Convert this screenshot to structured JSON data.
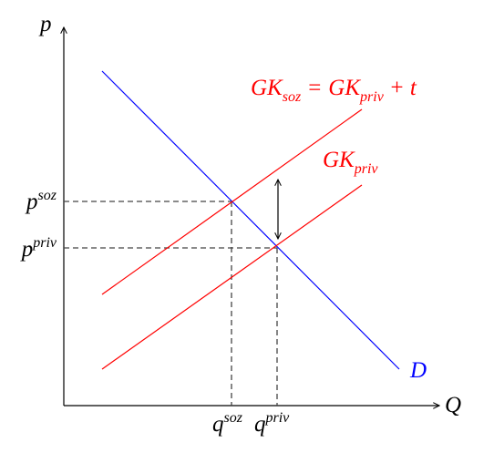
{
  "axes": {
    "y_label": "p",
    "x_label": "Q"
  },
  "curves": {
    "demand": "D",
    "private_cost": {
      "base": "GK",
      "sub": "priv"
    },
    "social_cost": {
      "base": "GK",
      "sub": "soz",
      "equals": "=",
      "rhs_base": "GK",
      "rhs_sub": "priv",
      "plus": "+ t"
    }
  },
  "prices": {
    "social": {
      "base": "p",
      "sup": "soz"
    },
    "private": {
      "base": "p",
      "sup": "priv"
    }
  },
  "quantities": {
    "social": {
      "base": "q",
      "sup": "soz"
    },
    "private": {
      "base": "q",
      "sup": "priv"
    }
  }
}
